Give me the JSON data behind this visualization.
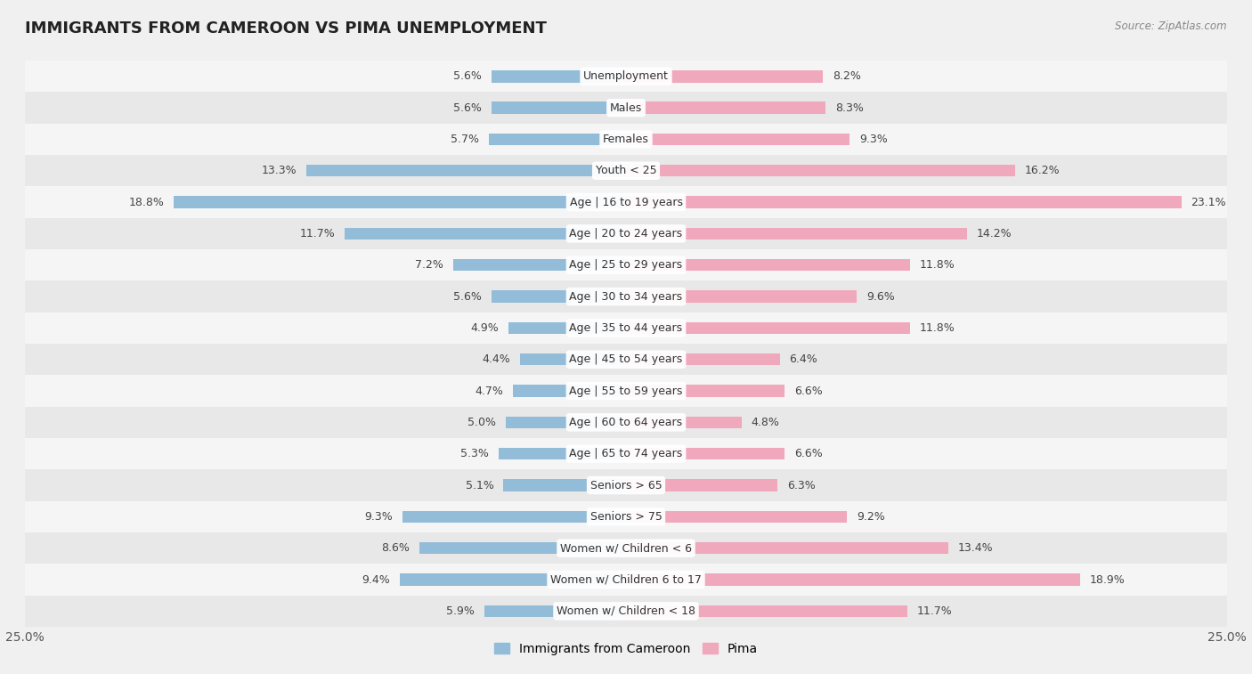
{
  "title": "IMMIGRANTS FROM CAMEROON VS PIMA UNEMPLOYMENT",
  "source": "Source: ZipAtlas.com",
  "categories": [
    "Unemployment",
    "Males",
    "Females",
    "Youth < 25",
    "Age | 16 to 19 years",
    "Age | 20 to 24 years",
    "Age | 25 to 29 years",
    "Age | 30 to 34 years",
    "Age | 35 to 44 years",
    "Age | 45 to 54 years",
    "Age | 55 to 59 years",
    "Age | 60 to 64 years",
    "Age | 65 to 74 years",
    "Seniors > 65",
    "Seniors > 75",
    "Women w/ Children < 6",
    "Women w/ Children 6 to 17",
    "Women w/ Children < 18"
  ],
  "left_values": [
    5.6,
    5.6,
    5.7,
    13.3,
    18.8,
    11.7,
    7.2,
    5.6,
    4.9,
    4.4,
    4.7,
    5.0,
    5.3,
    5.1,
    9.3,
    8.6,
    9.4,
    5.9
  ],
  "right_values": [
    8.2,
    8.3,
    9.3,
    16.2,
    23.1,
    14.2,
    11.8,
    9.6,
    11.8,
    6.4,
    6.6,
    4.8,
    6.6,
    6.3,
    9.2,
    13.4,
    18.9,
    11.7
  ],
  "left_color": "#92bcd8",
  "right_color": "#f0a8bc",
  "left_label": "Immigrants from Cameroon",
  "right_label": "Pima",
  "xlim": 25.0,
  "row_color_even": "#f5f5f5",
  "row_color_odd": "#e8e8e8",
  "background_color": "#f0f0f0",
  "title_fontsize": 13,
  "label_fontsize": 9,
  "value_fontsize": 9
}
